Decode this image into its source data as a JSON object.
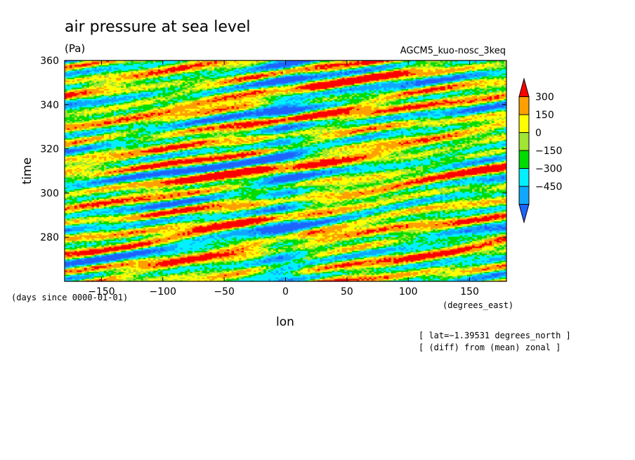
{
  "chart_data": {
    "type": "heatmap",
    "title": "air pressure at sea level",
    "units": "(Pa)",
    "run_label": "AGCM5_kuo-nosc_3keq",
    "xlabel": "lon",
    "ylabel": "time",
    "x_units": "(degrees_east)",
    "y_units": "(days since 0000-01-01)",
    "xlim": [
      -180,
      180
    ],
    "ylim": [
      260,
      360
    ],
    "x_ticks": [
      -150,
      -100,
      -50,
      0,
      50,
      100,
      150
    ],
    "y_ticks": [
      280,
      300,
      320,
      340,
      360
    ],
    "colorbar": {
      "levels": [
        -450,
        -300,
        -150,
        0,
        150,
        300
      ],
      "labels": [
        "300",
        "150",
        "0",
        "−150",
        "−300",
        "−450"
      ],
      "colors": [
        "#1e64ff",
        "#10a8ff",
        "#00f0ff",
        "#00dc00",
        "#a0e632",
        "#ffff00",
        "#ffa000",
        "#ff0000"
      ],
      "extend": "both"
    },
    "annotations": [
      "[ lat=−1.39531 degrees_north ]",
      "[ (diff) from (mean) zonal ]"
    ],
    "grid": false
  }
}
